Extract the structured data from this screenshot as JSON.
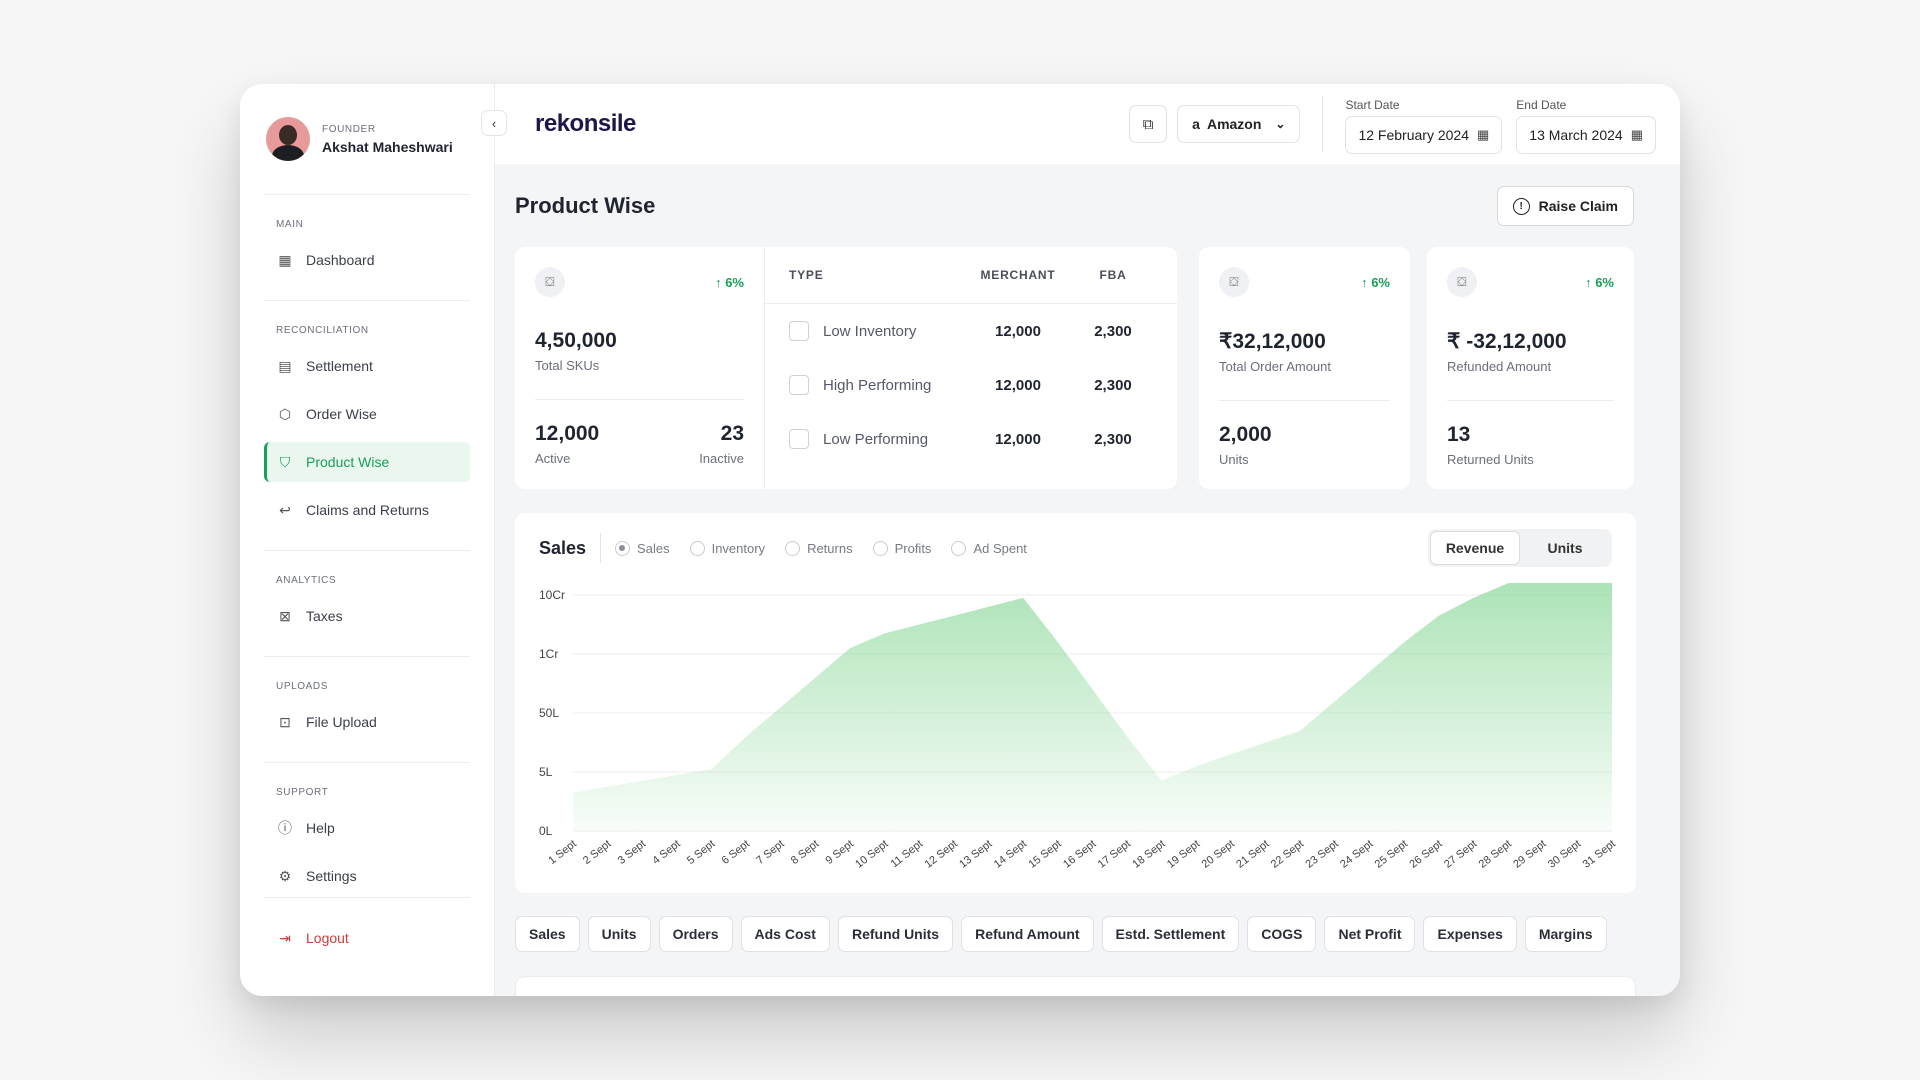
{
  "profile": {
    "role": "FOUNDER",
    "name": "Akshat Maheshwari"
  },
  "sidebar": {
    "sections": [
      {
        "title": "MAIN",
        "items": [
          {
            "label": "Dashboard",
            "icon": "grid-icon"
          }
        ]
      },
      {
        "title": "RECONCILIATION",
        "items": [
          {
            "label": "Settlement",
            "icon": "document-icon"
          },
          {
            "label": "Order Wise",
            "icon": "box-icon"
          },
          {
            "label": "Product Wise",
            "icon": "shirt-icon",
            "active": true
          },
          {
            "label": "Claims and Returns",
            "icon": "return-icon"
          }
        ]
      },
      {
        "title": "ANALYTICS",
        "items": [
          {
            "label": "Taxes",
            "icon": "tax-icon"
          }
        ]
      },
      {
        "title": "UPLOADS",
        "items": [
          {
            "label": "File Upload",
            "icon": "upload-icon"
          }
        ]
      },
      {
        "title": "SUPPORT",
        "items": [
          {
            "label": "Help",
            "icon": "help-icon"
          },
          {
            "label": "Settings",
            "icon": "gear-icon"
          }
        ]
      }
    ],
    "logout": "Logout"
  },
  "header": {
    "brand": "rekonsile",
    "marketplace": "Amazon",
    "start_label": "Start Date",
    "start_value": "12 February 2024",
    "end_label": "End Date",
    "end_value": "13 March 2024"
  },
  "page": {
    "title": "Product Wise",
    "raise_claim": "Raise Claim"
  },
  "skus": {
    "delta": "6%",
    "value": "4,50,000",
    "label": "Total SKUs",
    "active_value": "12,000",
    "active_label": "Active",
    "inactive_value": "23",
    "inactive_label": "Inactive"
  },
  "type_table": {
    "headers": [
      "TYPE",
      "MERCHANT",
      "FBA"
    ],
    "rows": [
      {
        "type": "Low Inventory",
        "merchant": "12,000",
        "fba": "2,300"
      },
      {
        "type": "High Performing",
        "merchant": "12,000",
        "fba": "2,300"
      },
      {
        "type": "Low Performing",
        "merchant": "12,000",
        "fba": "2,300"
      }
    ]
  },
  "orders": {
    "delta": "6%",
    "value": "₹32,12,000",
    "label": "Total Order Amount",
    "units_value": "2,000",
    "units_label": "Units"
  },
  "refunds": {
    "delta": "6%",
    "value": "₹ -32,12,000",
    "label": "Refunded Amount",
    "units_value": "13",
    "units_label": "Returned Units"
  },
  "sales": {
    "title": "Sales",
    "radios": [
      "Sales",
      "Inventory",
      "Returns",
      "Profits",
      "Ad Spent"
    ],
    "selected": "Sales",
    "toggle": [
      "Revenue",
      "Units"
    ],
    "toggle_selected": "Revenue"
  },
  "chart_data": {
    "type": "area",
    "y_ticks": [
      "10Cr",
      "1Cr",
      "50L",
      "5L",
      "0L"
    ],
    "x": [
      "1 Sept",
      "2 Sept",
      "3 Sept",
      "4 Sept",
      "5 Sept",
      "6 Sept",
      "7 Sept",
      "8 Sept",
      "9 Sept",
      "10 Sept",
      "11 Sept",
      "12 Sept",
      "13 Sept",
      "14 Sept",
      "15 Sept",
      "16 Sept",
      "17 Sept",
      "18 Sept",
      "19 Sept",
      "20 Sept",
      "21 Sept",
      "22 Sept",
      "23 Sept",
      "24 Sept",
      "25 Sept",
      "26 Sept",
      "27 Sept",
      "28 Sept",
      "29 Sept",
      "30 Sept",
      "31 Sept"
    ],
    "values_tick_index": [
      0.65,
      0.75,
      0.85,
      0.95,
      1.05,
      1.6,
      2.1,
      2.6,
      3.1,
      3.35,
      3.5,
      3.65,
      3.8,
      3.95,
      3.2,
      2.4,
      1.6,
      0.85,
      1.1,
      1.3,
      1.5,
      1.7,
      2.2,
      2.7,
      3.2,
      3.65,
      3.95,
      4.2,
      4.45,
      4.7,
      4.95
    ],
    "grid": true,
    "color": "#7fd48f"
  },
  "tabs": [
    "Sales",
    "Units",
    "Orders",
    "Ads Cost",
    "Refund Units",
    "Refund Amount",
    "Estd. Settlement",
    "COGS",
    "Net Profit",
    "Expenses",
    "Margins"
  ]
}
